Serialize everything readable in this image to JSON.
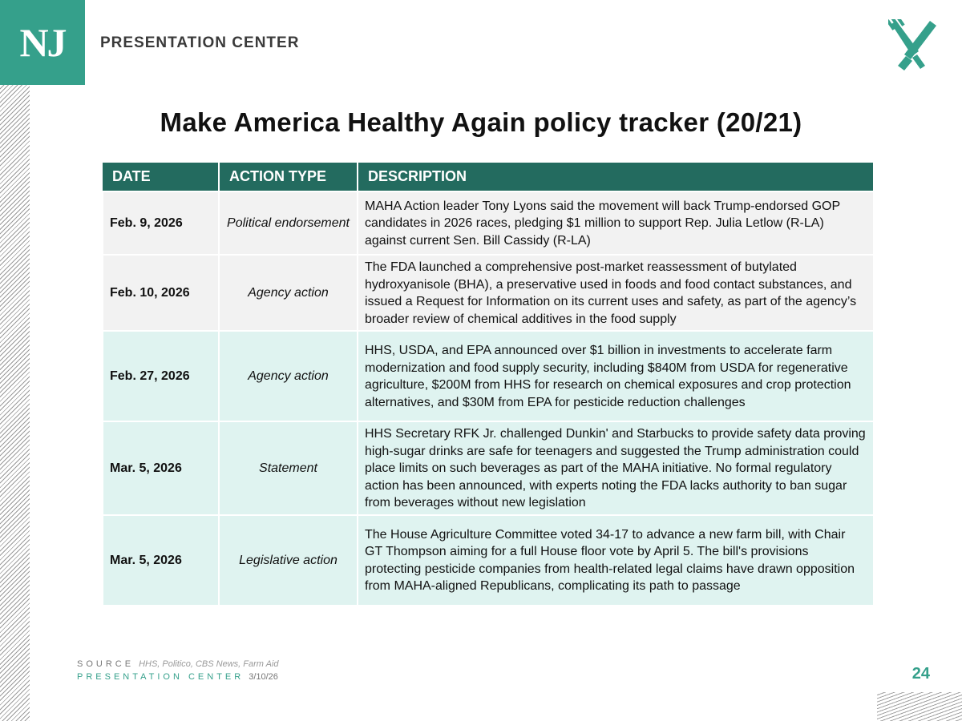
{
  "header": {
    "logo": "NJ",
    "brand": "PRESENTATION CENTER"
  },
  "title": "Make America Healthy Again policy tracker (20/21)",
  "table": {
    "columns": [
      "DATE",
      "ACTION TYPE",
      "DESCRIPTION"
    ],
    "rows": [
      [
        "Feb. 9, 2026",
        "Political endorsement",
        "MAHA Action leader Tony Lyons said the movement will back Trump-endorsed GOP candidates in 2026 races, pledging $1 million to support Rep. Julia Letlow (R-LA) against current Sen. Bill Cassidy (R-LA)"
      ],
      [
        "Feb. 10, 2026",
        "Agency action",
        "The FDA launched a comprehensive post-market reassessment of butylated hydroxyanisole (BHA), a preservative used in foods and food contact substances, and issued a Request for Information on its current uses and safety, as part of the agency’s broader review of chemical additives in the food supply"
      ],
      [
        "Feb. 27, 2026",
        "Agency action",
        "HHS, USDA, and EPA announced over $1 billion in investments to accelerate farm modernization and food supply security, including $840M from USDA for regenerative agriculture, $200M from HHS for research on chemical exposures and crop protection alternatives, and $30M from EPA for pesticide reduction challenges"
      ],
      [
        "Mar. 5, 2026",
        "Statement",
        "HHS Secretary RFK Jr. challenged Dunkin' and Starbucks to provide safety data proving high-sugar drinks are safe for teenagers and suggested the Trump administration could place limits on such beverages as part of the MAHA initiative. No formal regulatory action has been announced, with experts noting the FDA lacks authority to ban sugar from beverages without new legislation"
      ],
      [
        "Mar. 5, 2026",
        "Legislative action",
        "The House Agriculture Committee voted 34-17 to advance a new farm bill, with Chair GT Thompson aiming for a full House floor vote by April 5. The bill's provisions protecting pesticide companies from health-related legal claims have drawn opposition from MAHA-aligned Republicans, complicating its path to passage"
      ]
    ]
  },
  "footer": {
    "source_label": "SOURCE",
    "source": "HHS, Politico, CBS News, Farm Aid",
    "center_label": "PRESENTATION CENTER",
    "date": "3/10/26",
    "page": "24"
  }
}
